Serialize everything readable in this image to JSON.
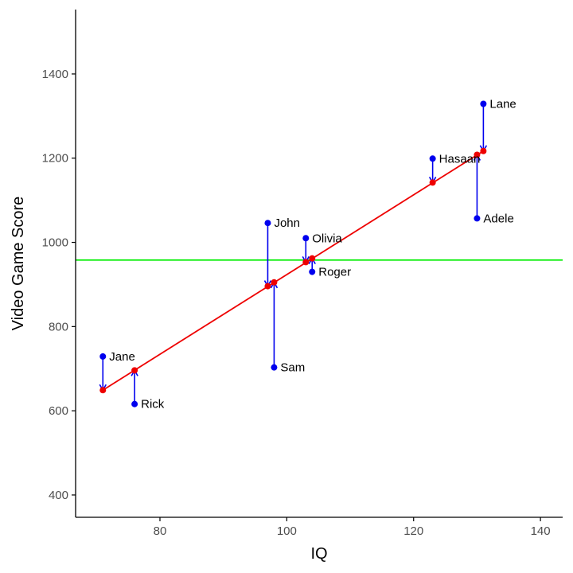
{
  "chart_data": {
    "type": "scatter",
    "xlabel": "IQ",
    "ylabel": "Video Game Score",
    "xlim": [
      66.7,
      143.5
    ],
    "ylim": [
      347,
      1553
    ],
    "x_ticks": [
      80,
      100,
      120,
      140
    ],
    "y_ticks": [
      400,
      600,
      800,
      1000,
      1200,
      1400
    ],
    "grid": false,
    "mean_line": 958,
    "regression_line": {
      "x": [
        71,
        131
      ],
      "y": [
        649,
        1217
      ]
    },
    "points": [
      {
        "name": "Jane",
        "iq": 71,
        "actual": 729,
        "predicted": 649
      },
      {
        "name": "Rick",
        "iq": 76,
        "actual": 616,
        "predicted": 696
      },
      {
        "name": "John",
        "iq": 97,
        "actual": 1046,
        "predicted": 896
      },
      {
        "name": "Sam",
        "iq": 98,
        "actual": 703,
        "predicted": 905
      },
      {
        "name": "Olivia",
        "iq": 103,
        "actual": 1010,
        "predicted": 953
      },
      {
        "name": "Roger",
        "iq": 104,
        "actual": 930,
        "predicted": 962
      },
      {
        "name": "Hasaan",
        "iq": 123,
        "actual": 1199,
        "predicted": 1142
      },
      {
        "name": "Adele",
        "iq": 130,
        "actual": 1057,
        "predicted": 1208
      },
      {
        "name": "Lane",
        "iq": 131,
        "actual": 1329,
        "predicted": 1217
      }
    ],
    "colors": {
      "actual": "#0000ee",
      "residual": "#0000ee",
      "predicted": "#ee0000",
      "regression": "#ee0000",
      "mean": "#00ee00",
      "axis": "#000000"
    }
  }
}
